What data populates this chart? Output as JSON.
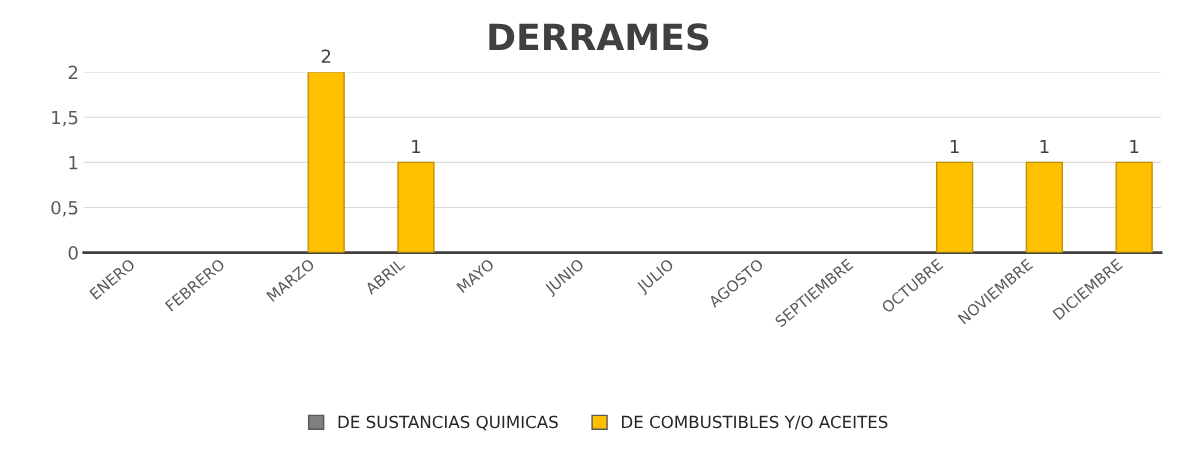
{
  "chart_data": {
    "type": "bar",
    "title": "DERRAMES",
    "categories": [
      "ENERO",
      "FEBRERO",
      "MARZO",
      "ABRIL",
      "MAYO",
      "JUNIO",
      "JULIO",
      "AGOSTO",
      "SEPTIEMBRE",
      "OCTUBRE",
      "NOVIEMBRE",
      "DICIEMBRE"
    ],
    "series": [
      {
        "name": "DE SUSTANCIAS QUIMICAS",
        "color": "#7f7f7f",
        "values": [
          null,
          null,
          null,
          null,
          null,
          null,
          null,
          null,
          null,
          null,
          null,
          null
        ]
      },
      {
        "name": "DE COMBUSTIBLES Y/O ACEITES",
        "color": "#ffc000",
        "values": [
          null,
          null,
          2,
          1,
          null,
          null,
          null,
          null,
          null,
          1,
          1,
          1
        ],
        "value_labels": [
          null,
          null,
          "2",
          "1",
          null,
          null,
          null,
          null,
          null,
          "1",
          "1",
          "1"
        ]
      }
    ],
    "ylim": [
      0,
      2
    ],
    "yticks": [
      0,
      {
        "value": 0.5,
        "label": "0,5"
      },
      1,
      {
        "value": 1.5,
        "label": "1,5"
      },
      2
    ],
    "grid": "y",
    "legend": "bottom"
  }
}
